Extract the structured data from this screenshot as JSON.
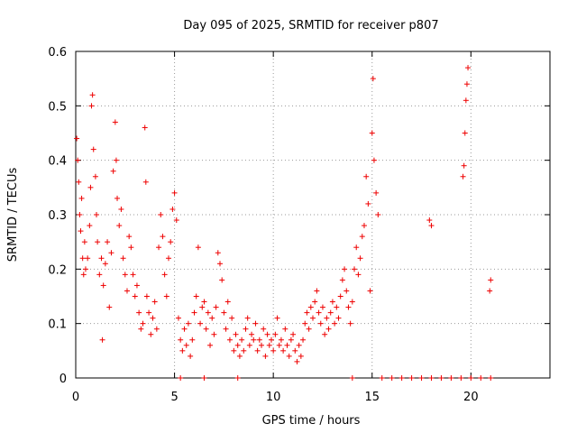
{
  "chart_data": {
    "type": "scatter",
    "title": "Day 095 of 2025, SRMTID for receiver p807",
    "xlabel": "GPS time / hours",
    "ylabel": "SRMTID / TECUs",
    "xlim": [
      0,
      24
    ],
    "ylim": [
      0,
      0.6
    ],
    "x_ticks": [
      0,
      5,
      10,
      15,
      20
    ],
    "x_tick_labels": [
      "0",
      "5",
      "10",
      "15",
      "20"
    ],
    "y_ticks": [
      0,
      0.1,
      0.2,
      0.3,
      0.4,
      0.5,
      0.6
    ],
    "y_tick_labels": [
      "0",
      "0.1",
      "0.2",
      "0.3",
      "0.4",
      "0.5",
      "0.6"
    ],
    "grid": true,
    "marker": "+",
    "color": "#ee0000",
    "series": [
      {
        "name": "SRMTID",
        "points": [
          [
            0.05,
            0.44
          ],
          [
            0.1,
            0.4
          ],
          [
            0.15,
            0.36
          ],
          [
            0.2,
            0.3
          ],
          [
            0.25,
            0.27
          ],
          [
            0.3,
            0.33
          ],
          [
            0.35,
            0.22
          ],
          [
            0.4,
            0.19
          ],
          [
            0.45,
            0.25
          ],
          [
            0.5,
            0.2
          ],
          [
            0.6,
            0.22
          ],
          [
            0.7,
            0.28
          ],
          [
            0.75,
            0.35
          ],
          [
            0.8,
            0.5
          ],
          [
            0.85,
            0.52
          ],
          [
            0.9,
            0.42
          ],
          [
            1.0,
            0.37
          ],
          [
            1.05,
            0.3
          ],
          [
            1.1,
            0.25
          ],
          [
            1.2,
            0.19
          ],
          [
            1.3,
            0.22
          ],
          [
            1.35,
            0.07
          ],
          [
            1.4,
            0.17
          ],
          [
            1.5,
            0.21
          ],
          [
            1.6,
            0.25
          ],
          [
            1.7,
            0.13
          ],
          [
            1.8,
            0.23
          ],
          [
            1.9,
            0.38
          ],
          [
            2.0,
            0.47
          ],
          [
            2.05,
            0.4
          ],
          [
            2.1,
            0.33
          ],
          [
            2.2,
            0.28
          ],
          [
            2.3,
            0.31
          ],
          [
            2.4,
            0.22
          ],
          [
            2.5,
            0.19
          ],
          [
            2.6,
            0.16
          ],
          [
            2.7,
            0.26
          ],
          [
            2.8,
            0.24
          ],
          [
            2.9,
            0.19
          ],
          [
            3.0,
            0.15
          ],
          [
            3.1,
            0.17
          ],
          [
            3.2,
            0.12
          ],
          [
            3.3,
            0.09
          ],
          [
            3.4,
            0.1
          ],
          [
            3.5,
            0.46
          ],
          [
            3.55,
            0.36
          ],
          [
            3.6,
            0.15
          ],
          [
            3.7,
            0.12
          ],
          [
            3.8,
            0.08
          ],
          [
            3.9,
            0.11
          ],
          [
            4.0,
            0.14
          ],
          [
            4.1,
            0.09
          ],
          [
            4.2,
            0.24
          ],
          [
            4.3,
            0.3
          ],
          [
            4.4,
            0.26
          ],
          [
            4.5,
            0.19
          ],
          [
            4.6,
            0.15
          ],
          [
            4.7,
            0.22
          ],
          [
            4.8,
            0.25
          ],
          [
            4.9,
            0.31
          ],
          [
            5.0,
            0.34
          ],
          [
            5.1,
            0.29
          ],
          [
            5.2,
            0.11
          ],
          [
            5.3,
            0.07
          ],
          [
            5.4,
            0.05
          ],
          [
            5.5,
            0.09
          ],
          [
            5.6,
            0.06
          ],
          [
            5.7,
            0.1
          ],
          [
            5.8,
            0.04
          ],
          [
            5.9,
            0.07
          ],
          [
            6.0,
            0.12
          ],
          [
            6.1,
            0.15
          ],
          [
            6.2,
            0.24
          ],
          [
            6.3,
            0.1
          ],
          [
            6.4,
            0.13
          ],
          [
            6.5,
            0.14
          ],
          [
            6.6,
            0.09
          ],
          [
            6.7,
            0.12
          ],
          [
            6.8,
            0.06
          ],
          [
            6.9,
            0.11
          ],
          [
            7.0,
            0.08
          ],
          [
            7.1,
            0.13
          ],
          [
            7.2,
            0.23
          ],
          [
            7.3,
            0.21
          ],
          [
            7.4,
            0.18
          ],
          [
            7.5,
            0.12
          ],
          [
            7.6,
            0.09
          ],
          [
            7.7,
            0.14
          ],
          [
            7.8,
            0.07
          ],
          [
            7.9,
            0.11
          ],
          [
            8.0,
            0.05
          ],
          [
            8.1,
            0.08
          ],
          [
            8.2,
            0.06
          ],
          [
            8.3,
            0.04
          ],
          [
            8.4,
            0.07
          ],
          [
            8.5,
            0.05
          ],
          [
            8.6,
            0.09
          ],
          [
            8.7,
            0.11
          ],
          [
            8.8,
            0.06
          ],
          [
            8.9,
            0.08
          ],
          [
            9.0,
            0.07
          ],
          [
            9.1,
            0.1
          ],
          [
            9.2,
            0.05
          ],
          [
            9.3,
            0.07
          ],
          [
            9.4,
            0.06
          ],
          [
            9.5,
            0.09
          ],
          [
            9.6,
            0.04
          ],
          [
            9.7,
            0.08
          ],
          [
            9.8,
            0.06
          ],
          [
            9.9,
            0.07
          ],
          [
            10.0,
            0.05
          ],
          [
            10.1,
            0.08
          ],
          [
            10.2,
            0.11
          ],
          [
            10.3,
            0.06
          ],
          [
            10.4,
            0.07
          ],
          [
            10.5,
            0.05
          ],
          [
            10.6,
            0.09
          ],
          [
            10.7,
            0.06
          ],
          [
            10.8,
            0.04
          ],
          [
            10.9,
            0.07
          ],
          [
            11.0,
            0.08
          ],
          [
            11.1,
            0.05
          ],
          [
            11.2,
            0.03
          ],
          [
            11.3,
            0.06
          ],
          [
            11.4,
            0.04
          ],
          [
            11.5,
            0.07
          ],
          [
            11.6,
            0.1
          ],
          [
            11.7,
            0.12
          ],
          [
            11.8,
            0.09
          ],
          [
            11.9,
            0.13
          ],
          [
            12.0,
            0.11
          ],
          [
            12.1,
            0.14
          ],
          [
            12.2,
            0.16
          ],
          [
            12.3,
            0.12
          ],
          [
            12.4,
            0.1
          ],
          [
            12.5,
            0.13
          ],
          [
            12.6,
            0.08
          ],
          [
            12.7,
            0.11
          ],
          [
            12.8,
            0.09
          ],
          [
            12.9,
            0.12
          ],
          [
            13.0,
            0.14
          ],
          [
            13.1,
            0.1
          ],
          [
            13.2,
            0.13
          ],
          [
            13.3,
            0.11
          ],
          [
            13.4,
            0.15
          ],
          [
            13.5,
            0.18
          ],
          [
            13.6,
            0.2
          ],
          [
            13.7,
            0.16
          ],
          [
            13.8,
            0.13
          ],
          [
            13.9,
            0.1
          ],
          [
            14.0,
            0.14
          ],
          [
            14.1,
            0.2
          ],
          [
            14.2,
            0.24
          ],
          [
            14.3,
            0.19
          ],
          [
            14.4,
            0.22
          ],
          [
            14.5,
            0.26
          ],
          [
            14.6,
            0.28
          ],
          [
            14.7,
            0.37
          ],
          [
            14.8,
            0.32
          ],
          [
            14.9,
            0.16
          ],
          [
            15.0,
            0.45
          ],
          [
            15.05,
            0.55
          ],
          [
            15.1,
            0.4
          ],
          [
            15.2,
            0.34
          ],
          [
            15.3,
            0.3
          ],
          [
            17.9,
            0.29
          ],
          [
            18.0,
            0.28
          ],
          [
            19.6,
            0.37
          ],
          [
            19.65,
            0.39
          ],
          [
            19.7,
            0.45
          ],
          [
            19.75,
            0.51
          ],
          [
            19.8,
            0.54
          ],
          [
            19.85,
            0.57
          ],
          [
            20.95,
            0.16
          ],
          [
            21.0,
            0.18
          ],
          [
            5.3,
            0
          ],
          [
            6.5,
            0
          ],
          [
            8.2,
            0
          ],
          [
            14.0,
            0
          ],
          [
            15.5,
            0
          ],
          [
            16.0,
            0
          ],
          [
            16.5,
            0
          ],
          [
            17.0,
            0
          ],
          [
            17.5,
            0
          ],
          [
            18.0,
            0
          ],
          [
            18.5,
            0
          ],
          [
            19.0,
            0
          ],
          [
            19.5,
            0
          ],
          [
            20.0,
            0
          ],
          [
            20.5,
            0
          ],
          [
            21.0,
            0
          ]
        ]
      }
    ]
  }
}
